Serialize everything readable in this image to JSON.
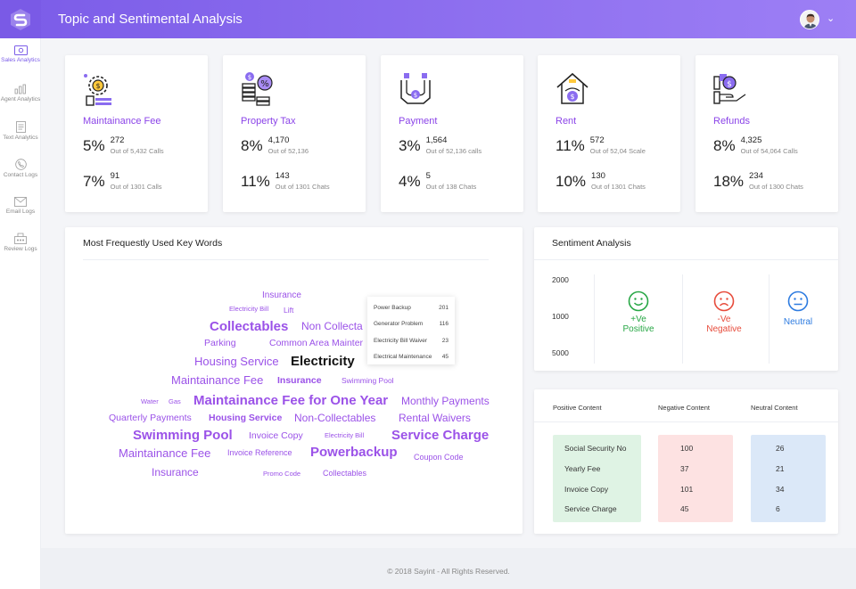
{
  "header": {
    "title": "Topic and Sentimental Analysis"
  },
  "sidebar": {
    "items": [
      {
        "label": "Sales Analytics",
        "icon": "money-icon"
      },
      {
        "label": "Agent Analytics",
        "icon": "bar-chart-icon"
      },
      {
        "label": "Text Analytics",
        "icon": "document-icon"
      },
      {
        "label": "Contact Logs",
        "icon": "phone-icon"
      },
      {
        "label": "Email Logs",
        "icon": "mail-icon"
      },
      {
        "label": "Review Logs",
        "icon": "review-icon"
      }
    ]
  },
  "topics": [
    {
      "title": "Maintainance Fee",
      "icon": "gear-money-icon",
      "r1": {
        "pct": "5%",
        "num": "272",
        "sub": "Out of 5,432 Calls"
      },
      "r2": {
        "pct": "7%",
        "num": "91",
        "sub": "Out of 1301 Calls"
      }
    },
    {
      "title": "Property Tax",
      "icon": "coins-percent-icon",
      "r1": {
        "pct": "8%",
        "num": "4,170",
        "sub": "Out of 52,136"
      },
      "r2": {
        "pct": "11%",
        "num": "143",
        "sub": "Out of 1301 Chats"
      }
    },
    {
      "title": "Payment",
      "icon": "hands-money-icon",
      "r1": {
        "pct": "3%",
        "num": "1,564",
        "sub": "Out of 52,136 calls"
      },
      "r2": {
        "pct": "4%",
        "num": "5",
        "sub": "Out of 138 Chats"
      }
    },
    {
      "title": "Rent",
      "icon": "house-money-icon",
      "r1": {
        "pct": "11%",
        "num": "572",
        "sub": "Out of 52,04 Scale"
      },
      "r2": {
        "pct": "10%",
        "num": "130",
        "sub": "Out of 1301 Chats"
      }
    },
    {
      "title": "Refunds",
      "icon": "hand-refund-icon",
      "r1": {
        "pct": "8%",
        "num": "4,325",
        "sub": "Out of 54,064 Calls"
      },
      "r2": {
        "pct": "18%",
        "num": "234",
        "sub": "Out of 1300 Chats"
      }
    }
  ],
  "keywords": {
    "title": "Most Frequestly Used Key Words",
    "words": [
      "Insurance",
      "Electricity Bill",
      "Lift",
      "Collectables",
      "Non Collecta",
      "Parking",
      "Common Area Mainter",
      "Housing Service",
      "Electricity",
      "Maintainance Fee",
      "Insurance",
      "Swimming Pool",
      "Water",
      "Gas",
      "Maintainance Fee for One Year",
      "Monthly Payments",
      "Quarterly Payments",
      "Housing Service",
      "Non-Collectables",
      "Rental Waivers",
      "Swimming Pool",
      "Invoice Copy",
      "Electricity Bill",
      "Service Charge",
      "Maintainance Fee",
      "Invoice Reference",
      "Powerbackup",
      "Coupon Code",
      "Insurance",
      "Promo Code",
      "Collectables"
    ],
    "tooltip": [
      {
        "label": "Power Backup",
        "value": "201"
      },
      {
        "label": "Generator Problem",
        "value": "116"
      },
      {
        "label": "Electricity Bill Waiver",
        "value": "23"
      },
      {
        "label": "Electrical Maintenance",
        "value": "45"
      }
    ]
  },
  "sentiment": {
    "title": "Sentiment Analysis",
    "y_labels": [
      "2000",
      "1000",
      "5000"
    ],
    "positive": {
      "line1": "+Ve",
      "line2": "Positive",
      "color": "#27a745",
      "icon": "smile-icon"
    },
    "negative": {
      "line1": "-Ve",
      "line2": "Negative",
      "color": "#e74c3c",
      "icon": "frown-icon"
    },
    "neutral": {
      "label": "Neutral",
      "color": "#2d7be0",
      "icon": "neutral-face-icon"
    }
  },
  "content": {
    "headers": [
      "Positive Content",
      "Negative Content",
      "Neutral Content"
    ],
    "positive": [
      "Social Security No",
      "Yearly Fee",
      "Invoice Copy",
      "Service Charge"
    ],
    "negative": [
      "100",
      "37",
      "101",
      "45"
    ],
    "neutral": [
      "26",
      "21",
      "34",
      "6"
    ],
    "colors": {
      "positive": "#dff3e4",
      "negative": "#fde2e2",
      "neutral": "#dbe8f8"
    }
  },
  "footer": {
    "text": "© 2018 Sayint - All Rights Reserved."
  }
}
